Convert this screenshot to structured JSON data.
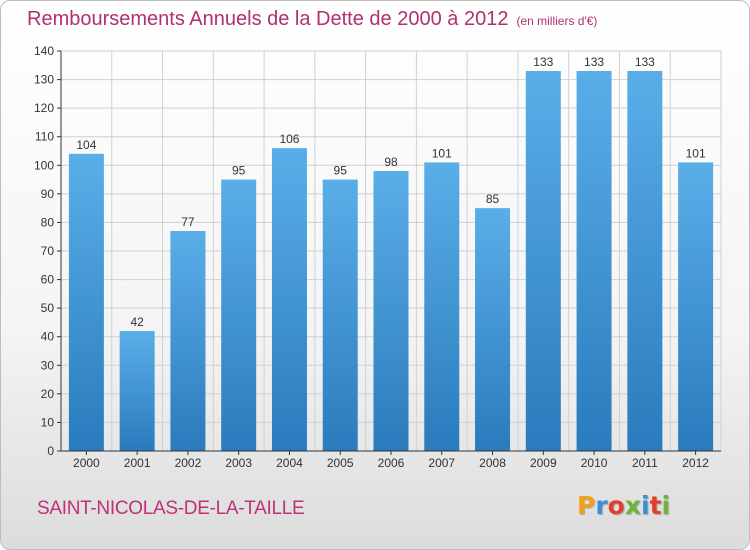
{
  "title": "Remboursements Annuels de la Dette de 2000 à 2012",
  "unit": "(en milliers d'€)",
  "commune": "SAINT-NICOLAS-DE-LA-TAILLE",
  "logo": [
    "P",
    "r",
    "o",
    "x",
    "i",
    "t",
    "i"
  ],
  "colors": {
    "title": "#b03070",
    "bar_top": "#5aaee8",
    "bar_bottom": "#2a7bbd",
    "grid": "#d0d0d0",
    "axis": "#333333"
  },
  "chart_data": {
    "type": "bar",
    "title": "Remboursements Annuels de la Dette de 2000 à 2012",
    "xlabel": "",
    "ylabel": "",
    "categories": [
      "2000",
      "2001",
      "2002",
      "2003",
      "2004",
      "2005",
      "2006",
      "2007",
      "2008",
      "2009",
      "2010",
      "2011",
      "2012"
    ],
    "values": [
      104,
      42,
      77,
      95,
      106,
      95,
      98,
      101,
      85,
      133,
      133,
      133,
      101
    ],
    "ylim": [
      0,
      140
    ],
    "yticks": [
      0,
      10,
      20,
      30,
      40,
      50,
      60,
      70,
      80,
      90,
      100,
      110,
      120,
      130,
      140
    ],
    "grid": true
  }
}
